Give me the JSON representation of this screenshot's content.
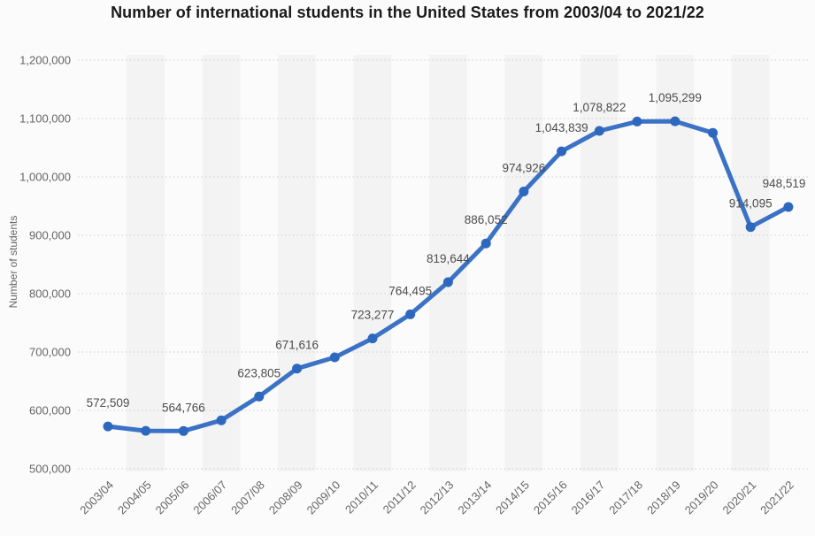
{
  "chart_data": {
    "type": "line",
    "title": "Number of international students in the United States from 2003/04 to 2021/22",
    "xlabel": "",
    "ylabel": "Number of students",
    "categories": [
      "2003/04",
      "2004/05",
      "2005/06",
      "2006/07",
      "2007/08",
      "2008/09",
      "2009/10",
      "2010/11",
      "2011/12",
      "2012/13",
      "2013/14",
      "2014/15",
      "2015/16",
      "2016/17",
      "2017/18",
      "2018/19",
      "2019/20",
      "2020/21",
      "2021/22"
    ],
    "values": [
      572509,
      565039,
      564766,
      582984,
      623805,
      671616,
      690923,
      723277,
      764495,
      819644,
      886052,
      974926,
      1043839,
      1078822,
      1094792,
      1095299,
      1075496,
      914095,
      948519
    ],
    "data_labels": [
      "572,509",
      null,
      "564,766",
      null,
      "623,805",
      "671,616",
      null,
      "723,277",
      "764,495",
      "819,644",
      "886,052",
      "974,926",
      "1,043,839",
      "1,078,822",
      null,
      "1,095,299",
      null,
      "914,095",
      "948,519"
    ],
    "ylim": [
      500000,
      1200000
    ],
    "ytick_labels": [
      "500,000",
      "600,000",
      "700,000",
      "800,000",
      "900,000",
      "1,000,000",
      "1,100,000",
      "1,200,000"
    ],
    "grid": "horizontal-dotted",
    "legend": "none",
    "marker": "circle",
    "colors": {
      "line": "#3b72c6",
      "marker": "#2d68bf",
      "grid": "#cccccc",
      "band": "#f3f3f3",
      "background": "#fbfbfb",
      "title_text": "#1a1a1a",
      "tick_text": "#666666",
      "label_text": "#4d4d4d"
    }
  }
}
